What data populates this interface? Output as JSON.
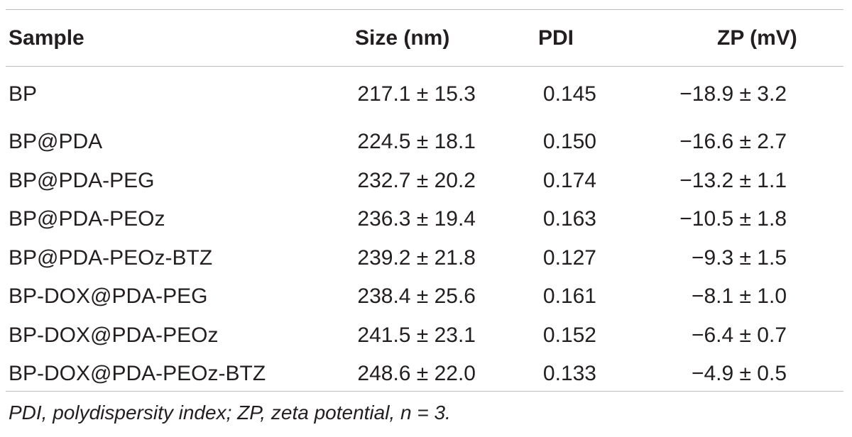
{
  "table": {
    "headers": {
      "sample": "Sample",
      "size": "Size (nm)",
      "pdi": "PDI",
      "zp": "ZP (mV)"
    },
    "rows": [
      {
        "sample": "BP",
        "size": "217.1 ± 15.3",
        "pdi": "0.145",
        "zp": "−18.9 ± 3.2"
      },
      {
        "sample": "BP@PDA",
        "size": "224.5 ± 18.1",
        "pdi": "0.150",
        "zp": "−16.6 ± 2.7"
      },
      {
        "sample": "BP@PDA-PEG",
        "size": "232.7 ± 20.2",
        "pdi": "0.174",
        "zp": "−13.2 ± 1.1"
      },
      {
        "sample": "BP@PDA-PEOz",
        "size": "236.3 ± 19.4",
        "pdi": "0.163",
        "zp": "−10.5 ± 1.8"
      },
      {
        "sample": "BP@PDA-PEOz-BTZ",
        "size": "239.2 ± 21.8",
        "pdi": "0.127",
        "zp": "−9.3 ± 1.5"
      },
      {
        "sample": "BP-DOX@PDA-PEG",
        "size": "238.4 ± 25.6",
        "pdi": "0.161",
        "zp": "−8.1 ± 1.0"
      },
      {
        "sample": "BP-DOX@PDA-PEOz",
        "size": "241.5 ± 23.1",
        "pdi": "0.152",
        "zp": "−6.4 ± 0.7"
      },
      {
        "sample": "BP-DOX@PDA-PEOz-BTZ",
        "size": "248.6 ± 22.0",
        "pdi": "0.133",
        "zp": "−4.9 ± 0.5"
      }
    ],
    "footnote": "PDI, polydispersity index; ZP, zeta potential, n = 3."
  }
}
